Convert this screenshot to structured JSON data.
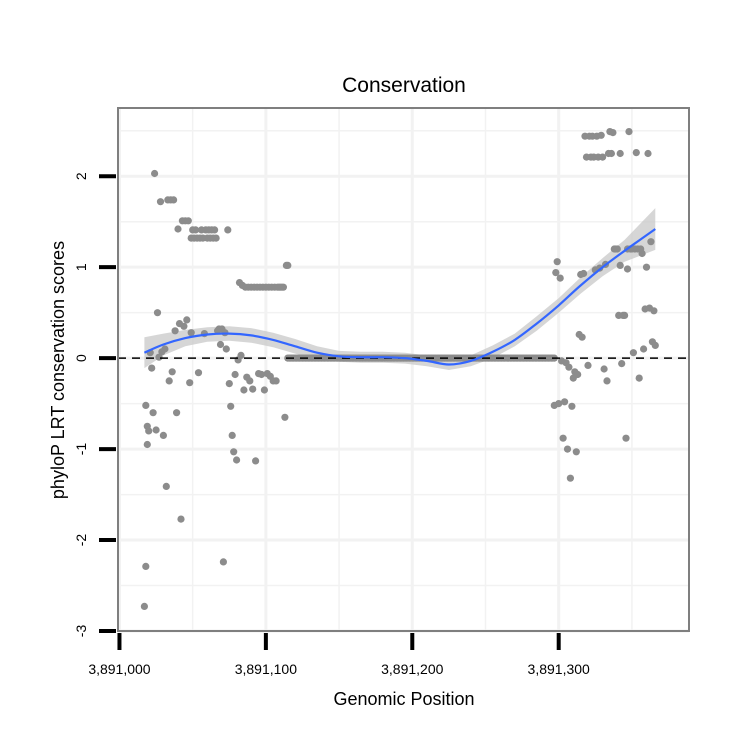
{
  "chart_data": {
    "type": "scatter",
    "title": "Conservation",
    "xlabel": "Genomic Position",
    "ylabel": "phyloP LRT conservation scores",
    "xlim": [
      3890999,
      3891389
    ],
    "ylim": [
      -3,
      2.75
    ],
    "x_ticks": [
      3891000,
      3891100,
      3891200,
      3891300
    ],
    "x_tick_labels": [
      "3,891,000",
      "3,891,100",
      "3,891,200",
      "3,891,300"
    ],
    "y_ticks": [
      -3,
      -2,
      -1,
      0,
      1,
      2
    ],
    "y_tick_labels": [
      "-3",
      "-2",
      "-1",
      "0",
      "1",
      "2"
    ],
    "reference_line": {
      "y": 0,
      "style": "dashed"
    },
    "colors": {
      "points": "#8c8c8c",
      "smooth": "#3366ff",
      "band": "#c8c8c8",
      "panel_border": "#7f7f7f",
      "grid": "#f2f2f2"
    },
    "series": [
      {
        "name": "phyloP scores",
        "points": [
          [
            3891017,
            -2.73
          ],
          [
            3891018,
            -2.29
          ],
          [
            3891018,
            -0.52
          ],
          [
            3891019,
            -0.95
          ],
          [
            3891019,
            -0.75
          ],
          [
            3891020,
            -0.8
          ],
          [
            3891021,
            0.06
          ],
          [
            3891022,
            -0.11
          ],
          [
            3891023,
            -0.6
          ],
          [
            3891024,
            2.03
          ],
          [
            3891025,
            -0.79
          ],
          [
            3891026,
            0.5
          ],
          [
            3891027,
            0.01
          ],
          [
            3891028,
            1.72
          ],
          [
            3891029,
            0.07
          ],
          [
            3891030,
            -0.85
          ],
          [
            3891031,
            0.1
          ],
          [
            3891032,
            -1.41
          ],
          [
            3891033,
            1.74
          ],
          [
            3891034,
            -0.25
          ],
          [
            3891035,
            1.74
          ],
          [
            3891036,
            -0.15
          ],
          [
            3891037,
            1.74
          ],
          [
            3891038,
            0.3
          ],
          [
            3891039,
            -0.6
          ],
          [
            3891040,
            1.42
          ],
          [
            3891041,
            0.38
          ],
          [
            3891042,
            -1.77
          ],
          [
            3891043,
            1.51
          ],
          [
            3891044,
            0.35
          ],
          [
            3891045,
            1.51
          ],
          [
            3891046,
            0.42
          ],
          [
            3891047,
            1.51
          ],
          [
            3891048,
            -0.27
          ],
          [
            3891049,
            1.32
          ],
          [
            3891049,
            0.28
          ],
          [
            3891050,
            1.41
          ],
          [
            3891051,
            1.32
          ],
          [
            3891052,
            1.41
          ],
          [
            3891053,
            1.32
          ],
          [
            3891054,
            -0.16
          ],
          [
            3891055,
            1.32
          ],
          [
            3891056,
            1.41
          ],
          [
            3891057,
            1.32
          ],
          [
            3891058,
            0.27
          ],
          [
            3891059,
            1.41
          ],
          [
            3891060,
            1.32
          ],
          [
            3891061,
            1.41
          ],
          [
            3891062,
            1.32
          ],
          [
            3891063,
            1.41
          ],
          [
            3891064,
            1.32
          ],
          [
            3891065,
            1.41
          ],
          [
            3891066,
            1.32
          ],
          [
            3891067,
            0.3
          ],
          [
            3891068,
            0.32
          ],
          [
            3891069,
            0.15
          ],
          [
            3891070,
            0.32
          ],
          [
            3891071,
            -2.24
          ],
          [
            3891072,
            0.28
          ],
          [
            3891073,
            0.1
          ],
          [
            3891074,
            1.41
          ],
          [
            3891075,
            -0.28
          ],
          [
            3891076,
            -0.53
          ],
          [
            3891077,
            -0.85
          ],
          [
            3891078,
            -1.03
          ],
          [
            3891079,
            -0.18
          ],
          [
            3891080,
            -1.12
          ],
          [
            3891081,
            -0.02
          ],
          [
            3891082,
            0.83
          ],
          [
            3891083,
            0.03
          ],
          [
            3891084,
            0.8
          ],
          [
            3891085,
            -0.35
          ],
          [
            3891086,
            0.78
          ],
          [
            3891087,
            -0.21
          ],
          [
            3891088,
            0.78
          ],
          [
            3891089,
            -0.25
          ],
          [
            3891090,
            0.78
          ],
          [
            3891091,
            -0.34
          ],
          [
            3891092,
            0.78
          ],
          [
            3891093,
            -1.13
          ],
          [
            3891094,
            0.78
          ],
          [
            3891095,
            -0.17
          ],
          [
            3891096,
            0.78
          ],
          [
            3891097,
            -0.18
          ],
          [
            3891098,
            0.78
          ],
          [
            3891099,
            -0.35
          ],
          [
            3891100,
            0.78
          ],
          [
            3891101,
            -0.17
          ],
          [
            3891102,
            0.78
          ],
          [
            3891103,
            -0.2
          ],
          [
            3891104,
            0.78
          ],
          [
            3891105,
            -0.25
          ],
          [
            3891106,
            0.78
          ],
          [
            3891107,
            -0.25
          ],
          [
            3891108,
            0.78
          ],
          [
            3891109,
            0.78
          ],
          [
            3891110,
            0.78
          ],
          [
            3891111,
            0.78
          ],
          [
            3891112,
            0.78
          ],
          [
            3891113,
            -0.65
          ],
          [
            3891114,
            1.02
          ],
          [
            3891115,
            1.02
          ],
          [
            3891297,
            -0.52
          ],
          [
            3891298,
            0.94
          ],
          [
            3891299,
            1.06
          ],
          [
            3891300,
            -0.5
          ],
          [
            3891301,
            0.88
          ],
          [
            3891302,
            -0.03
          ],
          [
            3891303,
            -0.88
          ],
          [
            3891304,
            -0.48
          ],
          [
            3891305,
            -0.05
          ],
          [
            3891306,
            -1.0
          ],
          [
            3891307,
            -0.1
          ],
          [
            3891308,
            -1.32
          ],
          [
            3891309,
            -0.53
          ],
          [
            3891310,
            -0.22
          ],
          [
            3891311,
            -0.15
          ],
          [
            3891312,
            -1.03
          ],
          [
            3891313,
            -0.18
          ],
          [
            3891314,
            0.26
          ],
          [
            3891315,
            0.92
          ],
          [
            3891316,
            0.23
          ],
          [
            3891317,
            0.93
          ],
          [
            3891318,
            2.44
          ],
          [
            3891319,
            2.21
          ],
          [
            3891320,
            -0.08
          ],
          [
            3891321,
            2.44
          ],
          [
            3891322,
            2.21
          ],
          [
            3891323,
            2.44
          ],
          [
            3891324,
            2.21
          ],
          [
            3891325,
            0.97
          ],
          [
            3891326,
            2.44
          ],
          [
            3891327,
            2.21
          ],
          [
            3891328,
            0.99
          ],
          [
            3891329,
            2.45
          ],
          [
            3891330,
            2.21
          ],
          [
            3891331,
            -0.12
          ],
          [
            3891332,
            1.03
          ],
          [
            3891333,
            -0.25
          ],
          [
            3891334,
            2.25
          ],
          [
            3891335,
            2.49
          ],
          [
            3891336,
            2.25
          ],
          [
            3891337,
            2.48
          ],
          [
            3891338,
            1.2
          ],
          [
            3891339,
            1.2
          ],
          [
            3891340,
            1.2
          ],
          [
            3891341,
            0.47
          ],
          [
            3891342,
            2.25
          ],
          [
            3891342,
            1.02
          ],
          [
            3891343,
            -0.06
          ],
          [
            3891344,
            0.47
          ],
          [
            3891345,
            0.47
          ],
          [
            3891346,
            -0.88
          ],
          [
            3891347,
            1.2
          ],
          [
            3891347,
            0.98
          ],
          [
            3891348,
            2.49
          ],
          [
            3891349,
            1.2
          ],
          [
            3891350,
            1.2
          ],
          [
            3891351,
            0.06
          ],
          [
            3891352,
            1.2
          ],
          [
            3891353,
            2.26
          ],
          [
            3891354,
            1.2
          ],
          [
            3891355,
            -0.22
          ],
          [
            3891356,
            1.2
          ],
          [
            3891357,
            1.15
          ],
          [
            3891358,
            0.1
          ],
          [
            3891359,
            0.54
          ],
          [
            3891360,
            1.0
          ],
          [
            3891361,
            2.25
          ],
          [
            3891362,
            0.55
          ],
          [
            3891363,
            1.28
          ],
          [
            3891364,
            0.18
          ],
          [
            3891365,
            0.52
          ],
          [
            3891366,
            0.14
          ]
        ],
        "zero_run": {
          "x_start": 3891115,
          "x_end": 3891297,
          "y": 0.0
        }
      }
    ],
    "smooth": {
      "x": [
        3891017,
        3891030,
        3891045,
        3891060,
        3891075,
        3891090,
        3891105,
        3891120,
        3891135,
        3891150,
        3891165,
        3891180,
        3891195,
        3891210,
        3891225,
        3891240,
        3891255,
        3891270,
        3891285,
        3891300,
        3891315,
        3891330,
        3891345,
        3891366
      ],
      "y": [
        0.06,
        0.15,
        0.22,
        0.26,
        0.27,
        0.25,
        0.2,
        0.13,
        0.06,
        0.02,
        0.01,
        0.01,
        0.0,
        -0.03,
        -0.07,
        -0.03,
        0.07,
        0.2,
        0.38,
        0.58,
        0.8,
        1.0,
        1.18,
        1.42
      ],
      "se": [
        0.17,
        0.12,
        0.09,
        0.08,
        0.08,
        0.08,
        0.08,
        0.08,
        0.07,
        0.06,
        0.06,
        0.06,
        0.06,
        0.06,
        0.06,
        0.06,
        0.07,
        0.07,
        0.08,
        0.08,
        0.09,
        0.1,
        0.12,
        0.23
      ]
    }
  }
}
